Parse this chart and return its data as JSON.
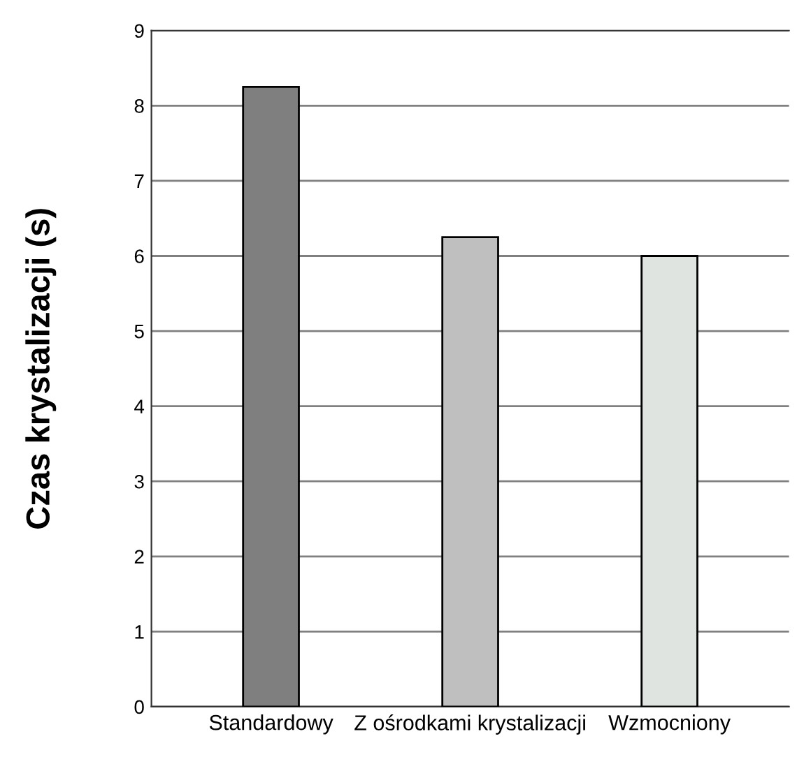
{
  "chart_data": {
    "type": "bar",
    "ylabel": "Czas krystalizacji (s)",
    "categories": [
      "Standardowy",
      "Z ośrodkami krystalizacji",
      "Wzmocniony"
    ],
    "values": [
      8.25,
      6.25,
      6.0
    ],
    "colors": [
      "#7f7f7f",
      "#bfbfbf",
      "#e0e4e0"
    ],
    "ylim": [
      0,
      9
    ],
    "yticks": [
      0,
      1,
      2,
      3,
      4,
      5,
      6,
      7,
      8,
      9
    ],
    "grid": "y"
  }
}
